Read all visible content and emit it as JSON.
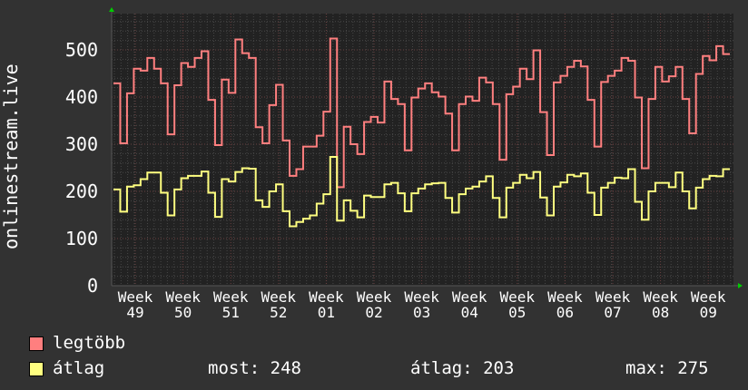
{
  "chart_data": {
    "type": "line",
    "ylabel": "onlinestream.live",
    "ylim": [
      0,
      560
    ],
    "yticks": [
      "0",
      "100",
      "200",
      "300",
      "400",
      "500"
    ],
    "xticks": [
      "Week 49",
      "Week 50",
      "Week 51",
      "Week 52",
      "Week 01",
      "Week 02",
      "Week 03",
      "Week 04",
      "Week 05",
      "Week 06",
      "Week 07",
      "Week 08",
      "Week 09"
    ],
    "grid": true,
    "series": [
      {
        "name": "legtöbb",
        "color": "#ff7f7f",
        "values": [
          429,
          302,
          408,
          460,
          456,
          483,
          460,
          429,
          321,
          425,
          472,
          464,
          483,
          497,
          394,
          298,
          437,
          409,
          522,
          493,
          483,
          336,
          302,
          383,
          426,
          308,
          233,
          247,
          295,
          295,
          318,
          369,
          524,
          209,
          337,
          300,
          279,
          347,
          358,
          346,
          433,
          396,
          385,
          287,
          399,
          418,
          429,
          410,
          401,
          365,
          287,
          385,
          401,
          392,
          441,
          431,
          385,
          267,
          406,
          422,
          460,
          438,
          499,
          368,
          277,
          431,
          445,
          464,
          477,
          465,
          394,
          295,
          432,
          445,
          456,
          483,
          477,
          399,
          249,
          396,
          464,
          433,
          444,
          464,
          396,
          323,
          449,
          487,
          478,
          508,
          491
        ]
      },
      {
        "name": "átlag",
        "color": "#ffff80",
        "values": [
          204,
          157,
          210,
          213,
          226,
          240,
          240,
          197,
          149,
          204,
          228,
          233,
          233,
          242,
          197,
          146,
          226,
          221,
          241,
          249,
          248,
          181,
          167,
          200,
          215,
          158,
          126,
          135,
          142,
          149,
          174,
          194,
          273,
          138,
          181,
          159,
          145,
          191,
          188,
          188,
          215,
          218,
          196,
          158,
          196,
          206,
          215,
          217,
          218,
          186,
          155,
          194,
          206,
          210,
          221,
          232,
          186,
          145,
          208,
          218,
          235,
          228,
          241,
          187,
          149,
          210,
          219,
          235,
          232,
          238,
          197,
          150,
          208,
          218,
          229,
          228,
          247,
          178,
          140,
          200,
          218,
          218,
          209,
          240,
          200,
          164,
          208,
          226,
          233,
          232,
          247
        ]
      }
    ]
  },
  "legend": {
    "max_label": "legtöbb",
    "avg_label": "átlag",
    "now": "most: 248",
    "average": "átlag: 203",
    "maximum": "max: 275"
  },
  "colors": {
    "background": "#323232",
    "plot_background": "#222222",
    "axis_arrow": "#00cc00"
  }
}
